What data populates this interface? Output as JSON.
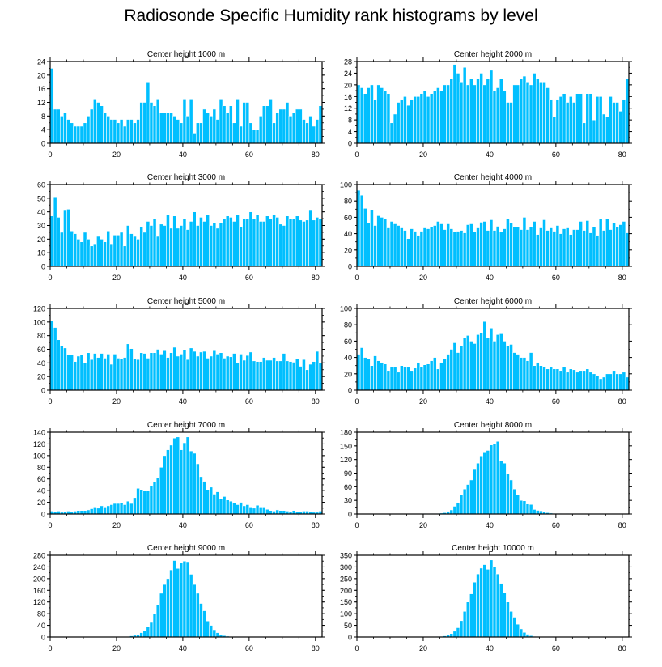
{
  "title": "Radiosonde Specific Humidity rank histograms by level",
  "colors": {
    "bar": "#00BFFF",
    "bar_edge": "#ffffff",
    "axis": "#000000"
  },
  "chart_data": [
    {
      "type": "bar",
      "title": "Center height 1000 m",
      "xlim": [
        0,
        82
      ],
      "ylim": [
        0,
        24
      ],
      "xticks": [
        0,
        20,
        40,
        60,
        80
      ],
      "yticks": [
        0,
        4,
        8,
        12,
        16,
        20,
        24
      ],
      "values": [
        22,
        10,
        10,
        8,
        9,
        7,
        6,
        5,
        5,
        5,
        6,
        8,
        10,
        13,
        12,
        11,
        9,
        8,
        7,
        7,
        6,
        7,
        5,
        7,
        7,
        6,
        7,
        12,
        12,
        18,
        12,
        11,
        13,
        9,
        9,
        9,
        9,
        8,
        7,
        6,
        13,
        8,
        13,
        3,
        6,
        6,
        10,
        9,
        8,
        10,
        7,
        13,
        11,
        9,
        11,
        6,
        13,
        5,
        12,
        12,
        6,
        4,
        4,
        8,
        11,
        11,
        13,
        6,
        9,
        10,
        10,
        12,
        8,
        9,
        10,
        10,
        7,
        6,
        8,
        5,
        7,
        11
      ]
    },
    {
      "type": "bar",
      "title": "Center height 2000 m",
      "xlim": [
        0,
        82
      ],
      "ylim": [
        0,
        28
      ],
      "xticks": [
        0,
        20,
        40,
        60,
        80
      ],
      "yticks": [
        0,
        4,
        8,
        12,
        16,
        20,
        24,
        28
      ],
      "values": [
        20,
        19,
        17,
        19,
        20,
        15,
        20,
        19,
        18,
        17,
        7,
        10,
        14,
        15,
        16,
        13,
        15,
        16,
        16,
        17,
        18,
        16,
        17,
        18,
        19,
        18,
        20,
        20,
        22,
        27,
        24,
        21,
        26,
        20,
        22,
        20,
        22,
        24,
        20,
        22,
        25,
        18,
        19,
        22,
        18,
        14,
        14,
        20,
        20,
        22,
        23,
        21,
        20,
        24,
        22,
        21,
        21,
        19,
        15,
        9,
        15,
        16,
        17,
        14,
        16,
        14,
        17,
        17,
        7,
        17,
        17,
        8,
        16,
        16,
        10,
        9,
        16,
        14,
        14,
        11,
        15,
        22
      ]
    },
    {
      "type": "bar",
      "title": "Center height 3000 m",
      "xlim": [
        0,
        82
      ],
      "ylim": [
        0,
        60
      ],
      "xticks": [
        0,
        20,
        40,
        60,
        80
      ],
      "yticks": [
        0,
        10,
        20,
        30,
        40,
        50,
        60
      ],
      "values": [
        37,
        51,
        36,
        25,
        41,
        42,
        26,
        24,
        20,
        18,
        25,
        20,
        15,
        16,
        22,
        20,
        18,
        26,
        16,
        23,
        23,
        25,
        15,
        30,
        24,
        22,
        20,
        29,
        25,
        33,
        30,
        35,
        22,
        31,
        30,
        38,
        28,
        37,
        28,
        30,
        35,
        27,
        33,
        40,
        30,
        36,
        33,
        38,
        30,
        32,
        28,
        32,
        35,
        37,
        36,
        33,
        38,
        29,
        35,
        35,
        40,
        35,
        38,
        33,
        33,
        37,
        35,
        38,
        36,
        31,
        30,
        37,
        35,
        35,
        37,
        34,
        33,
        34,
        41,
        34,
        36,
        35
      ]
    },
    {
      "type": "bar",
      "title": "Center height 4000 m",
      "xlim": [
        0,
        82
      ],
      "ylim": [
        0,
        100
      ],
      "xticks": [
        0,
        20,
        40,
        60,
        80
      ],
      "yticks": [
        0,
        20,
        40,
        60,
        80,
        100
      ],
      "values": [
        93,
        87,
        71,
        53,
        69,
        50,
        62,
        60,
        58,
        47,
        55,
        52,
        50,
        47,
        44,
        34,
        46,
        43,
        38,
        43,
        47,
        46,
        48,
        50,
        55,
        52,
        45,
        52,
        46,
        42,
        43,
        44,
        41,
        51,
        52,
        42,
        47,
        54,
        55,
        44,
        57,
        44,
        49,
        42,
        46,
        58,
        53,
        48,
        48,
        45,
        60,
        45,
        48,
        55,
        39,
        47,
        57,
        44,
        47,
        43,
        50,
        40,
        46,
        47,
        39,
        45,
        45,
        55,
        44,
        56,
        41,
        48,
        38,
        58,
        44,
        58,
        45,
        53,
        48,
        51,
        55,
        41
      ]
    },
    {
      "type": "bar",
      "title": "Center height 5000 m",
      "xlim": [
        0,
        82
      ],
      "ylim": [
        0,
        120
      ],
      "xticks": [
        0,
        20,
        40,
        60,
        80
      ],
      "yticks": [
        0,
        20,
        40,
        60,
        80,
        100,
        120
      ],
      "values": [
        102,
        92,
        74,
        65,
        62,
        52,
        52,
        42,
        50,
        52,
        40,
        55,
        45,
        54,
        48,
        54,
        47,
        53,
        38,
        53,
        47,
        46,
        48,
        68,
        61,
        46,
        45,
        55,
        54,
        47,
        55,
        55,
        60,
        53,
        58,
        48,
        55,
        63,
        50,
        53,
        59,
        45,
        62,
        57,
        50,
        56,
        57,
        47,
        50,
        58,
        53,
        55,
        47,
        50,
        49,
        54,
        40,
        53,
        44,
        51,
        56,
        43,
        42,
        42,
        48,
        44,
        44,
        48,
        43,
        43,
        54,
        43,
        42,
        41,
        46,
        35,
        45,
        30,
        38,
        42,
        57,
        40
      ]
    },
    {
      "type": "bar",
      "title": "Center height 6000 m",
      "xlim": [
        0,
        82
      ],
      "ylim": [
        0,
        100
      ],
      "xticks": [
        0,
        20,
        40,
        60,
        80
      ],
      "yticks": [
        0,
        20,
        40,
        60,
        80,
        100
      ],
      "values": [
        44,
        52,
        40,
        38,
        30,
        42,
        36,
        34,
        32,
        24,
        28,
        28,
        22,
        30,
        28,
        28,
        24,
        27,
        34,
        28,
        31,
        32,
        36,
        40,
        26,
        34,
        38,
        44,
        50,
        58,
        46,
        54,
        64,
        67,
        60,
        57,
        68,
        70,
        84,
        64,
        76,
        60,
        68,
        69,
        60,
        54,
        56,
        46,
        44,
        40,
        40,
        36,
        46,
        30,
        34,
        30,
        28,
        26,
        28,
        26,
        26,
        24,
        28,
        22,
        26,
        25,
        22,
        24,
        24,
        26,
        22,
        20,
        18,
        14,
        16,
        20,
        20,
        24,
        20,
        20,
        22,
        16
      ]
    },
    {
      "type": "bar",
      "title": "Center height 7000 m",
      "xlim": [
        0,
        82
      ],
      "ylim": [
        0,
        140
      ],
      "xticks": [
        0,
        20,
        40,
        60,
        80
      ],
      "yticks": [
        0,
        20,
        40,
        60,
        80,
        100,
        120,
        140
      ],
      "values": [
        5,
        4,
        5,
        3,
        4,
        5,
        4,
        5,
        6,
        6,
        6,
        7,
        9,
        12,
        10,
        14,
        12,
        14,
        16,
        18,
        18,
        19,
        16,
        22,
        18,
        28,
        44,
        42,
        40,
        40,
        48,
        55,
        62,
        80,
        100,
        110,
        118,
        130,
        132,
        110,
        122,
        132,
        108,
        104,
        86,
        64,
        56,
        42,
        46,
        34,
        38,
        26,
        30,
        24,
        22,
        19,
        16,
        20,
        14,
        16,
        12,
        10,
        15,
        12,
        12,
        8,
        6,
        5,
        7,
        6,
        6,
        5,
        4,
        6,
        4,
        4,
        5,
        5,
        4,
        3,
        3,
        5
      ]
    },
    {
      "type": "bar",
      "title": "Center height 8000 m",
      "xlim": [
        0,
        82
      ],
      "ylim": [
        0,
        180
      ],
      "xticks": [
        0,
        20,
        40,
        60,
        80
      ],
      "yticks": [
        0,
        30,
        60,
        90,
        120,
        150,
        180
      ],
      "values": [
        0,
        0,
        0,
        0,
        0,
        0,
        0,
        0,
        0,
        0,
        0,
        0,
        0,
        0,
        0,
        0,
        0,
        0,
        0,
        0,
        1,
        0,
        1,
        1,
        1,
        2,
        3,
        6,
        9,
        17,
        25,
        42,
        55,
        65,
        75,
        98,
        112,
        128,
        135,
        140,
        152,
        155,
        160,
        118,
        112,
        88,
        75,
        55,
        42,
        30,
        29,
        22,
        21,
        10,
        8,
        7,
        5,
        3,
        2,
        1,
        1,
        1,
        0,
        1,
        0,
        0,
        0,
        0,
        0,
        0,
        0,
        0,
        0,
        0,
        0,
        0,
        0,
        0,
        0,
        0,
        0,
        0
      ]
    },
    {
      "type": "bar",
      "title": "Center height 9000 m",
      "xlim": [
        0,
        82
      ],
      "ylim": [
        0,
        280
      ],
      "xticks": [
        0,
        20,
        40,
        60,
        80
      ],
      "yticks": [
        0,
        40,
        80,
        120,
        160,
        200,
        240,
        280
      ],
      "values": [
        0,
        0,
        0,
        0,
        0,
        0,
        0,
        0,
        0,
        0,
        0,
        0,
        0,
        0,
        0,
        0,
        0,
        0,
        0,
        0,
        0,
        1,
        1,
        2,
        4,
        6,
        9,
        15,
        22,
        35,
        50,
        80,
        110,
        150,
        180,
        200,
        230,
        262,
        235,
        255,
        260,
        258,
        215,
        180,
        150,
        115,
        90,
        55,
        40,
        25,
        15,
        9,
        5,
        3,
        2,
        1,
        1,
        1,
        0,
        0,
        0,
        0,
        0,
        0,
        0,
        0,
        0,
        0,
        0,
        0,
        0,
        0,
        0,
        0,
        0,
        0,
        0,
        0,
        0,
        0,
        0,
        0
      ]
    },
    {
      "type": "bar",
      "title": "Center height 10000 m",
      "xlim": [
        0,
        82
      ],
      "ylim": [
        0,
        350
      ],
      "xticks": [
        0,
        20,
        40,
        60,
        80
      ],
      "yticks": [
        0,
        50,
        100,
        150,
        200,
        250,
        300,
        350
      ],
      "values": [
        0,
        0,
        0,
        0,
        0,
        0,
        0,
        0,
        0,
        0,
        0,
        0,
        0,
        0,
        0,
        0,
        0,
        0,
        0,
        0,
        0,
        0,
        0,
        1,
        2,
        3,
        5,
        10,
        15,
        25,
        40,
        70,
        110,
        150,
        185,
        235,
        270,
        295,
        310,
        290,
        330,
        300,
        270,
        230,
        190,
        150,
        110,
        85,
        55,
        35,
        20,
        12,
        6,
        3,
        2,
        1,
        1,
        0,
        0,
        0,
        0,
        0,
        0,
        0,
        0,
        0,
        0,
        0,
        0,
        0,
        0,
        0,
        0,
        0,
        0,
        0,
        0,
        0,
        0,
        0,
        0,
        0
      ]
    }
  ]
}
